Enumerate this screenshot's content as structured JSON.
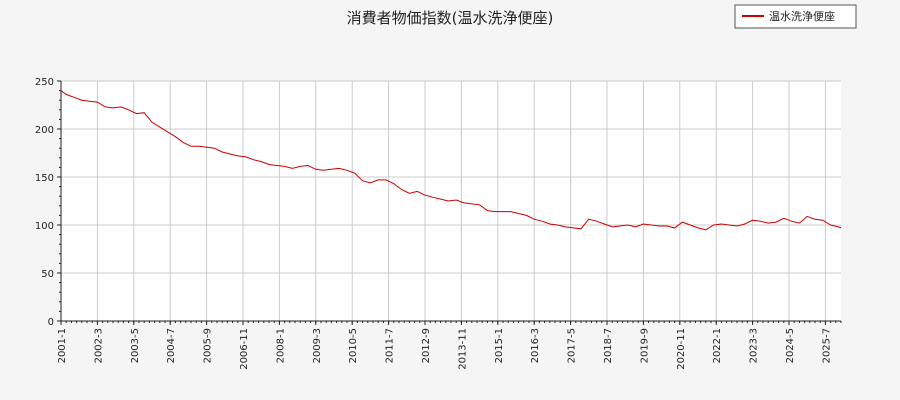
{
  "chart_data": {
    "type": "line",
    "title": "消費者物価指数(温水洗浄便座)",
    "xlabel": "",
    "ylabel": "",
    "x_range": [
      "2001-01",
      "2026-01"
    ],
    "ylim": [
      0,
      250
    ],
    "y_ticks": [
      0,
      50,
      100,
      150,
      200,
      250
    ],
    "x_ticks": [
      "2001-1",
      "2002-3",
      "2003-5",
      "2004-7",
      "2005-9",
      "2006-11",
      "2008-1",
      "2009-3",
      "2010-5",
      "2011-7",
      "2012-9",
      "2013-11",
      "2015-1",
      "2016-3",
      "2017-5",
      "2018-7",
      "2019-9",
      "2020-11",
      "2022-1",
      "2023-3",
      "2024-5",
      "2025-7"
    ],
    "grid": true,
    "legend_position": "top-right",
    "series": [
      {
        "name": "温水洗浄便座",
        "color": "#cc0000",
        "points": [
          [
            "2001-01",
            240
          ],
          [
            "2001-03",
            236
          ],
          [
            "2001-06",
            233
          ],
          [
            "2001-09",
            230
          ],
          [
            "2001-12",
            229
          ],
          [
            "2002-03",
            228
          ],
          [
            "2002-06",
            223
          ],
          [
            "2002-09",
            222
          ],
          [
            "2002-12",
            223
          ],
          [
            "2003-03",
            220
          ],
          [
            "2003-06",
            216
          ],
          [
            "2003-09",
            217
          ],
          [
            "2003-12",
            207
          ],
          [
            "2004-03",
            202
          ],
          [
            "2004-06",
            197
          ],
          [
            "2004-09",
            192
          ],
          [
            "2004-12",
            186
          ],
          [
            "2005-03",
            182
          ],
          [
            "2005-06",
            182
          ],
          [
            "2005-09",
            181
          ],
          [
            "2005-12",
            180
          ],
          [
            "2006-03",
            176
          ],
          [
            "2006-06",
            174
          ],
          [
            "2006-09",
            172
          ],
          [
            "2006-12",
            171
          ],
          [
            "2007-03",
            168
          ],
          [
            "2007-06",
            166
          ],
          [
            "2007-09",
            163
          ],
          [
            "2007-12",
            162
          ],
          [
            "2008-03",
            161
          ],
          [
            "2008-06",
            159
          ],
          [
            "2008-09",
            161
          ],
          [
            "2008-12",
            162
          ],
          [
            "2009-03",
            158
          ],
          [
            "2009-06",
            157
          ],
          [
            "2009-09",
            158
          ],
          [
            "2009-12",
            159
          ],
          [
            "2010-03",
            157
          ],
          [
            "2010-06",
            154
          ],
          [
            "2010-09",
            146
          ],
          [
            "2010-12",
            144
          ],
          [
            "2011-03",
            147
          ],
          [
            "2011-06",
            147
          ],
          [
            "2011-09",
            143
          ],
          [
            "2011-12",
            137
          ],
          [
            "2012-03",
            133
          ],
          [
            "2012-06",
            135
          ],
          [
            "2012-09",
            131
          ],
          [
            "2012-12",
            129
          ],
          [
            "2013-03",
            127
          ],
          [
            "2013-06",
            125
          ],
          [
            "2013-09",
            126
          ],
          [
            "2013-12",
            123
          ],
          [
            "2014-03",
            122
          ],
          [
            "2014-06",
            121
          ],
          [
            "2014-09",
            115
          ],
          [
            "2014-12",
            114
          ],
          [
            "2015-03",
            114
          ],
          [
            "2015-06",
            114
          ],
          [
            "2015-09",
            112
          ],
          [
            "2015-12",
            110
          ],
          [
            "2016-03",
            106
          ],
          [
            "2016-06",
            104
          ],
          [
            "2016-09",
            101
          ],
          [
            "2016-12",
            100
          ],
          [
            "2017-03",
            98
          ],
          [
            "2017-06",
            97
          ],
          [
            "2017-09",
            96
          ],
          [
            "2017-12",
            106
          ],
          [
            "2018-03",
            104
          ],
          [
            "2018-06",
            101
          ],
          [
            "2018-09",
            98
          ],
          [
            "2018-12",
            99
          ],
          [
            "2019-03",
            100
          ],
          [
            "2019-06",
            98
          ],
          [
            "2019-09",
            101
          ],
          [
            "2019-12",
            100
          ],
          [
            "2020-03",
            99
          ],
          [
            "2020-06",
            99
          ],
          [
            "2020-09",
            97
          ],
          [
            "2020-12",
            103
          ],
          [
            "2021-03",
            100
          ],
          [
            "2021-06",
            97
          ],
          [
            "2021-09",
            95
          ],
          [
            "2021-12",
            100
          ],
          [
            "2022-03",
            101
          ],
          [
            "2022-06",
            100
          ],
          [
            "2022-09",
            99
          ],
          [
            "2022-12",
            101
          ],
          [
            "2023-03",
            105
          ],
          [
            "2023-06",
            104
          ],
          [
            "2023-09",
            102
          ],
          [
            "2023-12",
            103
          ],
          [
            "2024-03",
            107
          ],
          [
            "2024-06",
            104
          ],
          [
            "2024-09",
            102
          ],
          [
            "2024-12",
            109
          ],
          [
            "2025-03",
            106
          ],
          [
            "2025-06",
            105
          ],
          [
            "2025-09",
            100
          ],
          [
            "2025-12",
            98
          ],
          [
            "2026-01",
            97
          ]
        ]
      }
    ]
  }
}
